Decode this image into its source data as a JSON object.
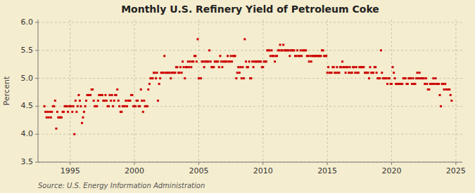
{
  "chart_data": {
    "type": "scatter",
    "title": "Monthly U.S. Refinery Yield of Petroleum Coke",
    "ylabel": "Percent",
    "source": "Source: U.S. Energy Information Administration",
    "color": "#cc0000",
    "marker": "square",
    "grid": true,
    "xlim": [
      1992.5,
      2025.5
    ],
    "ylim": [
      3.5,
      6.05
    ],
    "xticks": [
      1995,
      2000,
      2005,
      2010,
      2015,
      2020,
      2025
    ],
    "yticks": [
      3.5,
      {
        "value": 4.0,
        "label": "4.0"
      },
      4.5,
      {
        "value": 5.0,
        "label": "5.0"
      },
      5.5,
      {
        "value": 6.0,
        "label": "6.0"
      }
    ],
    "x": [
      1993.0,
      1993.08,
      1993.17,
      1993.25,
      1993.33,
      1993.42,
      1993.5,
      1993.58,
      1993.67,
      1993.75,
      1993.83,
      1993.92,
      1994.0,
      1994.08,
      1994.17,
      1994.25,
      1994.33,
      1994.42,
      1994.5,
      1994.58,
      1994.67,
      1994.75,
      1994.83,
      1994.92,
      1995.0,
      1995.08,
      1995.17,
      1995.25,
      1995.33,
      1995.42,
      1995.5,
      1995.58,
      1995.67,
      1995.75,
      1995.83,
      1995.92,
      1996.0,
      1996.08,
      1996.17,
      1996.25,
      1996.33,
      1996.42,
      1996.5,
      1996.58,
      1996.67,
      1996.75,
      1996.83,
      1996.92,
      1997.0,
      1997.08,
      1997.17,
      1997.25,
      1997.33,
      1997.42,
      1997.5,
      1997.58,
      1997.67,
      1997.75,
      1997.83,
      1997.92,
      1998.0,
      1998.08,
      1998.17,
      1998.25,
      1998.33,
      1998.42,
      1998.5,
      1998.58,
      1998.67,
      1998.75,
      1998.83,
      1998.92,
      1999.0,
      1999.08,
      1999.17,
      1999.25,
      1999.33,
      1999.42,
      1999.5,
      1999.58,
      1999.67,
      1999.75,
      1999.83,
      1999.92,
      2000.0,
      2000.08,
      2000.17,
      2000.25,
      2000.33,
      2000.42,
      2000.5,
      2000.58,
      2000.67,
      2000.75,
      2000.83,
      2000.92,
      2001.0,
      2001.08,
      2001.17,
      2001.25,
      2001.33,
      2001.42,
      2001.5,
      2001.58,
      2001.67,
      2001.75,
      2001.83,
      2001.92,
      2002.0,
      2002.08,
      2002.17,
      2002.25,
      2002.33,
      2002.42,
      2002.5,
      2002.58,
      2002.67,
      2002.75,
      2002.83,
      2002.92,
      2003.0,
      2003.08,
      2003.17,
      2003.25,
      2003.33,
      2003.42,
      2003.5,
      2003.58,
      2003.67,
      2003.75,
      2003.83,
      2003.92,
      2004.0,
      2004.08,
      2004.17,
      2004.25,
      2004.33,
      2004.42,
      2004.5,
      2004.58,
      2004.67,
      2004.75,
      2004.83,
      2004.92,
      2005.0,
      2005.08,
      2005.17,
      2005.25,
      2005.33,
      2005.42,
      2005.5,
      2005.58,
      2005.67,
      2005.75,
      2005.83,
      2005.92,
      2006.0,
      2006.08,
      2006.17,
      2006.25,
      2006.33,
      2006.42,
      2006.5,
      2006.58,
      2006.67,
      2006.75,
      2006.83,
      2006.92,
      2007.0,
      2007.08,
      2007.17,
      2007.25,
      2007.33,
      2007.42,
      2007.5,
      2007.58,
      2007.67,
      2007.75,
      2007.83,
      2007.92,
      2008.0,
      2008.08,
      2008.17,
      2008.25,
      2008.33,
      2008.42,
      2008.5,
      2008.58,
      2008.67,
      2008.75,
      2008.83,
      2008.92,
      2009.0,
      2009.08,
      2009.17,
      2009.25,
      2009.33,
      2009.42,
      2009.5,
      2009.58,
      2009.67,
      2009.75,
      2009.83,
      2009.92,
      2010.0,
      2010.08,
      2010.17,
      2010.25,
      2010.33,
      2010.42,
      2010.5,
      2010.58,
      2010.67,
      2010.75,
      2010.83,
      2010.92,
      2011.0,
      2011.08,
      2011.17,
      2011.25,
      2011.33,
      2011.42,
      2011.5,
      2011.58,
      2011.67,
      2011.75,
      2011.83,
      2011.92,
      2012.0,
      2012.08,
      2012.17,
      2012.25,
      2012.33,
      2012.42,
      2012.5,
      2012.58,
      2012.67,
      2012.75,
      2012.83,
      2012.92,
      2013.0,
      2013.08,
      2013.17,
      2013.25,
      2013.33,
      2013.42,
      2013.5,
      2013.58,
      2013.67,
      2013.75,
      2013.83,
      2013.92,
      2014.0,
      2014.08,
      2014.17,
      2014.25,
      2014.33,
      2014.42,
      2014.5,
      2014.58,
      2014.67,
      2014.75,
      2014.83,
      2014.92,
      2015.0,
      2015.08,
      2015.17,
      2015.25,
      2015.33,
      2015.42,
      2015.5,
      2015.58,
      2015.67,
      2015.75,
      2015.83,
      2015.92,
      2016.0,
      2016.08,
      2016.17,
      2016.25,
      2016.33,
      2016.42,
      2016.5,
      2016.58,
      2016.67,
      2016.75,
      2016.83,
      2016.92,
      2017.0,
      2017.08,
      2017.17,
      2017.25,
      2017.33,
      2017.42,
      2017.5,
      2017.58,
      2017.67,
      2017.75,
      2017.83,
      2017.92,
      2018.0,
      2018.08,
      2018.17,
      2018.25,
      2018.33,
      2018.42,
      2018.5,
      2018.58,
      2018.67,
      2018.75,
      2018.83,
      2018.92,
      2019.0,
      2019.08,
      2019.17,
      2019.25,
      2019.33,
      2019.42,
      2019.5,
      2019.58,
      2019.67,
      2019.75,
      2019.83,
      2019.92,
      2020.0,
      2020.08,
      2020.17,
      2020.25,
      2020.33,
      2020.42,
      2020.5,
      2020.58,
      2020.67,
      2020.75,
      2020.83,
      2020.92,
      2021.0,
      2021.08,
      2021.17,
      2021.25,
      2021.33,
      2021.42,
      2021.5,
      2021.58,
      2021.67,
      2021.75,
      2021.83,
      2021.92,
      2022.0,
      2022.08,
      2022.17,
      2022.25,
      2022.33,
      2022.42,
      2022.5,
      2022.58,
      2022.67,
      2022.75,
      2022.83,
      2022.92,
      2023.0,
      2023.08,
      2023.17,
      2023.25,
      2023.33,
      2023.42,
      2023.5,
      2023.58,
      2023.67,
      2023.75,
      2023.83,
      2023.92,
      2024.0,
      2024.08,
      2024.17,
      2024.25,
      2024.33,
      2024.42,
      2024.5,
      2024.58,
      2024.67
    ],
    "values": [
      4.5,
      4.4,
      4.3,
      4.4,
      4.3,
      4.4,
      4.3,
      4.4,
      4.5,
      4.5,
      4.6,
      4.1,
      4.4,
      4.3,
      4.3,
      4.3,
      4.3,
      4.4,
      4.4,
      4.5,
      4.5,
      4.5,
      4.4,
      4.5,
      4.5,
      4.5,
      4.4,
      4.5,
      4.0,
      4.6,
      4.4,
      4.5,
      4.7,
      4.6,
      4.5,
      4.2,
      4.3,
      4.4,
      4.5,
      4.6,
      4.7,
      4.7,
      4.7,
      4.7,
      4.8,
      4.8,
      4.6,
      4.5,
      4.5,
      4.5,
      4.6,
      4.7,
      4.7,
      4.7,
      4.7,
      4.6,
      4.6,
      4.7,
      4.6,
      4.5,
      4.5,
      4.7,
      4.6,
      4.7,
      4.5,
      4.6,
      4.7,
      4.7,
      4.8,
      4.6,
      4.5,
      4.4,
      4.4,
      4.5,
      4.5,
      4.5,
      4.6,
      4.5,
      4.6,
      4.6,
      4.6,
      4.7,
      4.7,
      4.5,
      4.5,
      4.5,
      4.6,
      4.6,
      4.5,
      4.5,
      4.8,
      4.6,
      4.4,
      4.6,
      4.5,
      4.5,
      4.5,
      4.8,
      4.9,
      5.0,
      5.0,
      5.0,
      5.1,
      5.1,
      5.0,
      5.1,
      4.6,
      4.9,
      5.0,
      5.1,
      5.1,
      5.1,
      5.4,
      5.1,
      5.1,
      5.1,
      5.1,
      5.1,
      5.0,
      5.1,
      5.1,
      5.1,
      5.1,
      5.2,
      5.2,
      5.1,
      5.1,
      5.2,
      5.1,
      5.3,
      5.2,
      5.0,
      5.2,
      5.2,
      5.3,
      5.2,
      5.3,
      5.2,
      5.3,
      5.3,
      5.4,
      5.4,
      5.3,
      5.7,
      5.0,
      5.0,
      5.0,
      5.3,
      5.3,
      5.2,
      5.3,
      5.3,
      5.3,
      5.3,
      5.5,
      5.3,
      5.2,
      5.2,
      5.2,
      5.3,
      5.3,
      5.3,
      5.3,
      5.2,
      5.4,
      5.3,
      5.2,
      5.3,
      5.3,
      5.3,
      5.3,
      5.4,
      5.3,
      5.3,
      5.4,
      5.3,
      5.4,
      5.4,
      5.4,
      5.0,
      5.1,
      5.2,
      5.1,
      5.2,
      5.0,
      5.2,
      5.0,
      5.7,
      5.3,
      5.2,
      5.2,
      5.3,
      5.0,
      5.0,
      5.3,
      5.2,
      5.3,
      5.3,
      5.3,
      5.3,
      5.3,
      5.3,
      5.3,
      5.2,
      5.2,
      5.3,
      5.3,
      5.3,
      5.5,
      5.5,
      5.5,
      5.4,
      5.5,
      5.4,
      5.4,
      5.3,
      5.4,
      5.4,
      5.5,
      5.5,
      5.6,
      5.5,
      5.5,
      5.6,
      5.5,
      5.5,
      5.5,
      5.5,
      5.5,
      5.4,
      5.5,
      5.5,
      5.5,
      5.5,
      5.4,
      5.4,
      5.5,
      5.4,
      5.4,
      5.5,
      5.4,
      5.5,
      5.5,
      5.5,
      5.5,
      5.4,
      5.4,
      5.3,
      5.4,
      5.3,
      5.4,
      5.4,
      5.4,
      5.4,
      5.4,
      5.4,
      5.4,
      5.4,
      5.4,
      5.5,
      5.5,
      5.4,
      5.4,
      5.4,
      5.1,
      5.2,
      5.1,
      5.1,
      5.1,
      5.2,
      5.2,
      5.1,
      5.1,
      5.2,
      5.1,
      5.1,
      5.2,
      5.2,
      5.3,
      5.2,
      5.2,
      5.1,
      5.2,
      5.2,
      5.1,
      5.2,
      5.1,
      5.1,
      5.2,
      5.2,
      5.1,
      5.2,
      5.1,
      5.1,
      5.2,
      5.2,
      5.2,
      5.2,
      5.2,
      5.1,
      5.1,
      5.1,
      5.1,
      5.0,
      5.2,
      5.1,
      5.1,
      5.1,
      5.2,
      5.2,
      5.1,
      5.0,
      5.0,
      5.0,
      5.5,
      5.1,
      5.0,
      5.0,
      5.0,
      5.0,
      4.9,
      5.0,
      5.0,
      4.9,
      4.9,
      5.2,
      5.1,
      5.0,
      4.9,
      4.9,
      4.9,
      4.9,
      4.9,
      4.9,
      4.9,
      5.0,
      5.0,
      5.0,
      4.9,
      4.9,
      5.0,
      5.0,
      5.0,
      4.9,
      5.0,
      4.9,
      4.9,
      5.0,
      5.1,
      5.0,
      5.1,
      5.0,
      5.0,
      5.0,
      5.0,
      4.9,
      5.0,
      4.9,
      4.8,
      4.8,
      4.9,
      4.9,
      4.9,
      5.0,
      4.9,
      5.0,
      4.9,
      4.9,
      4.9,
      4.7,
      4.5,
      4.9,
      4.9,
      4.8,
      4.9,
      4.8,
      4.8,
      4.8,
      4.8,
      4.7,
      4.6
    ]
  }
}
